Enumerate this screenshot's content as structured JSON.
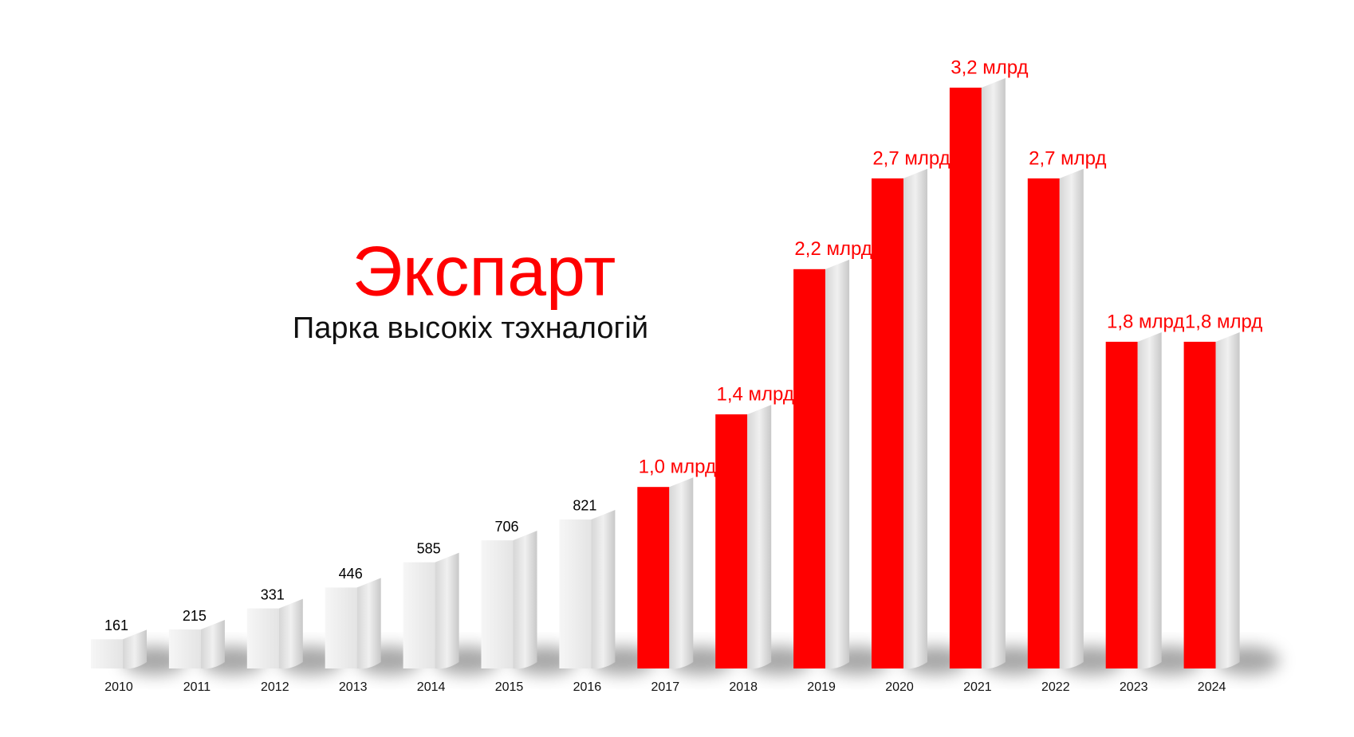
{
  "chart_data": {
    "type": "bar",
    "title": "Экспарт",
    "subtitle": "Парка высокіх тэхналогій",
    "categories": [
      "2010",
      "2011",
      "2012",
      "2013",
      "2014",
      "2015",
      "2016",
      "2017",
      "2018",
      "2019",
      "2020",
      "2021",
      "2022",
      "2023",
      "2024"
    ],
    "values": [
      161,
      215,
      331,
      446,
      585,
      706,
      821,
      1000,
      1400,
      2200,
      2700,
      3200,
      2700,
      1800,
      1800
    ],
    "value_labels": [
      "161",
      "215",
      "331",
      "446",
      "585",
      "706",
      "821",
      "1,0 млрд",
      "1,4 млрд",
      "2,2 млрд",
      "2,7 млрд",
      "3,2 млрд",
      "2,7 млрд",
      "1,8 млрд",
      "1,8 млрд"
    ],
    "colors": [
      "#ececec",
      "#ececec",
      "#ececec",
      "#ececec",
      "#ececec",
      "#ececec",
      "#ececec",
      "#ff0000",
      "#ff0000",
      "#ff0000",
      "#ff0000",
      "#ff0000",
      "#ff0000",
      "#ff0000",
      "#ff0000"
    ],
    "label_colors": [
      "#000000",
      "#000000",
      "#000000",
      "#000000",
      "#000000",
      "#000000",
      "#000000",
      "#ff0000",
      "#ff0000",
      "#ff0000",
      "#ff0000",
      "#ff0000",
      "#ff0000",
      "#ff0000",
      "#ff0000"
    ]
  }
}
